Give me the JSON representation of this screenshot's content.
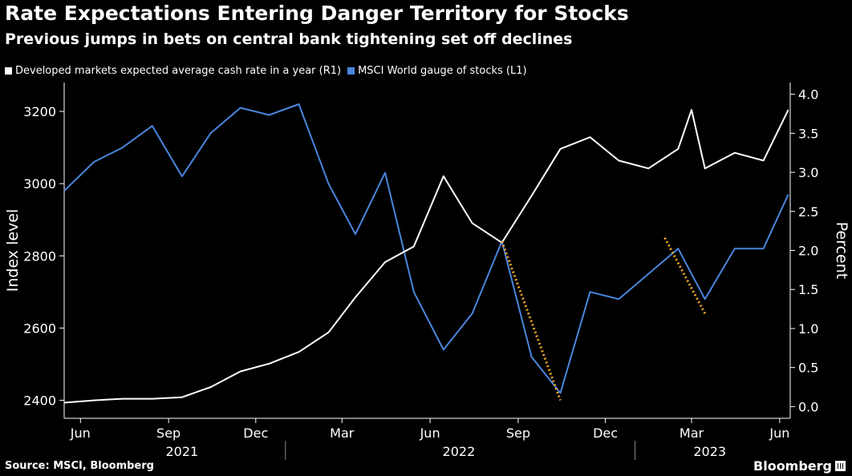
{
  "header": {
    "title": "Rate Expectations Entering Danger Territory for Stocks",
    "subtitle": "Previous jumps in bets on central bank tightening set off declines"
  },
  "footer": {
    "source": "Source: MSCI, Bloomberg",
    "brand": "Bloomberg"
  },
  "colors": {
    "background": "#000000",
    "rates": "#ffffff",
    "stocks": "#4a86dc",
    "trend": "#f5a623"
  },
  "chart_data": {
    "type": "line",
    "x_axis": {
      "month_labels": [
        "Jun",
        "Sep",
        "Dec",
        "Mar",
        "Jun",
        "Sep",
        "Dec",
        "Mar",
        "Jun"
      ],
      "year_labels": [
        "2021",
        "2022",
        "2023"
      ]
    },
    "y_left": {
      "label": "Index level",
      "ticks": [
        "2400",
        "2600",
        "2800",
        "3000",
        "3200"
      ],
      "range": [
        2350,
        3280
      ]
    },
    "y_right": {
      "label": "Percent",
      "ticks": [
        "0.0",
        "0.5",
        "1.0",
        "1.5",
        "2.0",
        "2.5",
        "3.0",
        "3.5",
        "4.0"
      ],
      "range": [
        -0.15,
        4.15
      ]
    },
    "series": [
      {
        "name": "Developed markets expected average cash rate in a year (R1)",
        "axis": "right",
        "x": [
          "2021-05-15",
          "2021-06-15",
          "2021-07-15",
          "2021-08-15",
          "2021-09-15",
          "2021-10-15",
          "2021-11-15",
          "2021-12-15",
          "2022-01-15",
          "2022-02-15",
          "2022-03-15",
          "2022-04-15",
          "2022-05-15",
          "2022-06-15",
          "2022-07-15",
          "2022-08-15",
          "2022-09-15",
          "2022-10-15",
          "2022-11-15",
          "2022-12-15",
          "2023-01-15",
          "2023-02-15",
          "2023-03-01",
          "2023-03-15",
          "2023-04-15",
          "2023-05-15",
          "2023-06-10"
        ],
        "values": [
          0.05,
          0.08,
          0.1,
          0.1,
          0.12,
          0.25,
          0.45,
          0.55,
          0.7,
          0.95,
          1.4,
          1.85,
          2.05,
          2.95,
          2.35,
          2.1,
          2.7,
          3.3,
          3.45,
          3.15,
          3.05,
          3.3,
          3.8,
          3.05,
          3.25,
          3.15,
          3.8
        ]
      },
      {
        "name": "MSCI World gauge of stocks (L1)",
        "axis": "left",
        "x": [
          "2021-05-15",
          "2021-06-15",
          "2021-07-15",
          "2021-08-15",
          "2021-09-15",
          "2021-10-15",
          "2021-11-15",
          "2021-12-15",
          "2022-01-15",
          "2022-02-15",
          "2022-03-15",
          "2022-04-15",
          "2022-05-15",
          "2022-06-15",
          "2022-07-15",
          "2022-08-15",
          "2022-09-15",
          "2022-10-15",
          "2022-11-15",
          "2022-12-15",
          "2023-01-15",
          "2023-02-15",
          "2023-03-15",
          "2023-04-15",
          "2023-05-15",
          "2023-06-10"
        ],
        "values": [
          2980,
          3060,
          3100,
          3160,
          3020,
          3140,
          3210,
          3190,
          3220,
          3000,
          2860,
          3030,
          2700,
          2540,
          2640,
          2840,
          2520,
          2420,
          2700,
          2680,
          2750,
          2820,
          2680,
          2820,
          2820,
          2970
        ]
      }
    ],
    "annotations": [
      {
        "type": "dotted-trend",
        "from": [
          "2022-08-15",
          2840
        ],
        "to": [
          "2022-10-15",
          2400
        ]
      },
      {
        "type": "dotted-trend",
        "from": [
          "2023-02-01",
          2850
        ],
        "to": [
          "2023-03-15",
          2640
        ]
      }
    ]
  }
}
